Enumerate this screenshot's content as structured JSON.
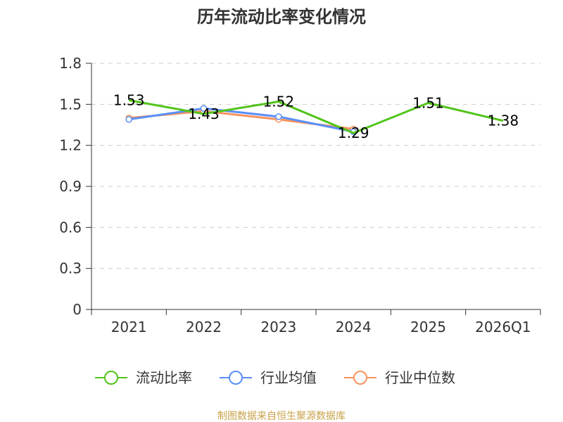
{
  "chart_data": {
    "type": "line",
    "title": "历年流动比率变化情况",
    "categories": [
      "2021",
      "2022",
      "2023",
      "2024",
      "2025",
      "2026Q1"
    ],
    "ylim": [
      0,
      1.8
    ],
    "yticks": [
      "0",
      "0.3",
      "0.6",
      "0.9",
      "1.2",
      "1.5",
      "1.8"
    ],
    "grid": true,
    "legend_position": "bottom",
    "series": [
      {
        "name": "流动比率",
        "color": "#52c41a",
        "values": [
          1.53,
          1.43,
          1.52,
          1.29,
          1.51,
          1.38
        ],
        "labels": [
          "1.53",
          "1.43",
          "1.52",
          "1.29",
          "1.51",
          "1.38"
        ],
        "show_labels": true
      },
      {
        "name": "行业均值",
        "color": "#5b8ff9",
        "values": [
          1.39,
          1.47,
          1.41,
          1.3,
          null,
          null
        ],
        "show_labels": false
      },
      {
        "name": "行业中位数",
        "color": "#f6925b",
        "values": [
          1.4,
          1.45,
          1.39,
          1.32,
          null,
          null
        ],
        "show_labels": false
      }
    ]
  },
  "footer": {
    "source": "制图数据来自恒生聚源数据库"
  }
}
